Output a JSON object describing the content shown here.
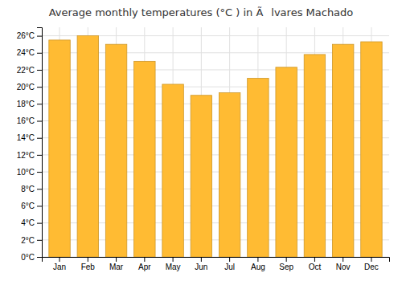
{
  "chart_data": {
    "type": "bar",
    "title": "Average monthly temperatures (°C ) in Ãlvares Machado",
    "categories": [
      "Jan",
      "Feb",
      "Mar",
      "Apr",
      "May",
      "Jun",
      "Jul",
      "Aug",
      "Sep",
      "Oct",
      "Nov",
      "Dec"
    ],
    "values": [
      25.5,
      26.0,
      25.0,
      23.0,
      20.3,
      19.0,
      19.3,
      21.0,
      22.3,
      23.8,
      25.0,
      25.3
    ],
    "color": "#FFBB33",
    "ylim": [
      0,
      27
    ],
    "yticks": [
      {
        "value": 0,
        "label": "0°C"
      },
      {
        "value": 2,
        "label": "2°C"
      },
      {
        "value": 4,
        "label": "4°C"
      },
      {
        "value": 6,
        "label": "6°C"
      },
      {
        "value": 8,
        "label": "8°C"
      },
      {
        "value": 10,
        "label": "10°C"
      },
      {
        "value": 12,
        "label": "12°C"
      },
      {
        "value": 14,
        "label": "14°C"
      },
      {
        "value": 16,
        "label": "16°C"
      },
      {
        "value": 18,
        "label": "18°C"
      },
      {
        "value": 20,
        "label": "20°C"
      },
      {
        "value": 22,
        "label": "22°C"
      },
      {
        "value": 24,
        "label": "24°C"
      },
      {
        "value": 26,
        "label": "26°C"
      }
    ],
    "grid": true
  }
}
